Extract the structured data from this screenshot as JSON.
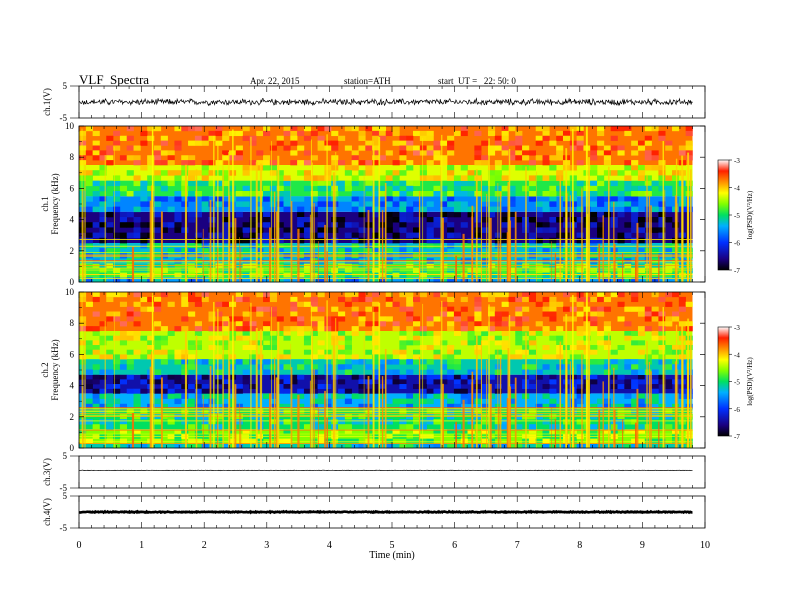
{
  "header": {
    "title": "VLF  Spectra",
    "date": "Apr. 22, 2015",
    "station": "station=ATH",
    "start": "start  UT =   22: 50: 0"
  },
  "chart_data": [
    {
      "type": "line",
      "panel": "ch1-waveform",
      "ylabel": "ch.1(V)",
      "ylim": [
        -5,
        5
      ],
      "yticks": [
        "5",
        "-5"
      ],
      "description_values": {
        "baseline_v": 0,
        "amplitude_v_max": 1.2
      },
      "color": "#000000"
    },
    {
      "type": "heatmap",
      "panel": "ch1-spectrogram",
      "ylabel_line1": "ch.1",
      "ylabel_line2": "Frequency  (kHz)",
      "ylim": [
        0,
        10
      ],
      "yticks": [
        "0",
        "2",
        "4",
        "6",
        "8",
        "10"
      ],
      "xlim": [
        0,
        9.8
      ],
      "colorbar": {
        "label": "log(PSD)(V²/Hz)",
        "range": [
          -7,
          -3
        ],
        "ticks": [
          "-3",
          "-4",
          "-5",
          "-6",
          "-7"
        ]
      },
      "bands_khz_to_logpsd": [
        {
          "f": [
            0,
            0.3
          ],
          "v": -5.5
        },
        {
          "f": [
            0.3,
            1.2
          ],
          "v": -4.8
        },
        {
          "f": [
            1.2,
            2.5
          ],
          "v": -5.3
        },
        {
          "f": [
            2.5,
            4.5
          ],
          "v": -6.6
        },
        {
          "f": [
            4.5,
            5.5
          ],
          "v": -5.6
        },
        {
          "f": [
            5.5,
            6.5
          ],
          "v": -4.9
        },
        {
          "f": [
            6.5,
            7.5
          ],
          "v": -4.3
        },
        {
          "f": [
            7.5,
            10
          ],
          "v": -3.7
        }
      ]
    },
    {
      "type": "heatmap",
      "panel": "ch2-spectrogram",
      "ylabel_line1": "ch.2",
      "ylabel_line2": "Frequency  (kHz)",
      "ylim": [
        0,
        10
      ],
      "yticks": [
        "0",
        "2",
        "4",
        "6",
        "8",
        "10"
      ],
      "xlim": [
        0,
        9.8
      ],
      "colorbar": {
        "label": "log(PSD)(V²/Hz)",
        "range": [
          -7,
          -3
        ],
        "ticks": [
          "-3",
          "-4",
          "-5",
          "-6",
          "-7"
        ]
      },
      "bands_khz_to_logpsd": [
        {
          "f": [
            0,
            0.3
          ],
          "v": -5.2
        },
        {
          "f": [
            0.3,
            1.2
          ],
          "v": -4.6
        },
        {
          "f": [
            1.2,
            2.5
          ],
          "v": -5.0
        },
        {
          "f": [
            2.5,
            3.5
          ],
          "v": -5.4
        },
        {
          "f": [
            3.5,
            4.7
          ],
          "v": -6.4
        },
        {
          "f": [
            4.7,
            5.7
          ],
          "v": -5.2
        },
        {
          "f": [
            5.7,
            7.5
          ],
          "v": -4.4
        },
        {
          "f": [
            7.5,
            10
          ],
          "v": -3.7
        }
      ]
    },
    {
      "type": "line",
      "panel": "ch3-waveform",
      "ylabel": "ch.3(V)",
      "ylim": [
        -5,
        5
      ],
      "yticks": [
        "5",
        "-5"
      ],
      "description_values": {
        "baseline_v": 0.5,
        "amplitude_v_max": 0.1
      },
      "color": "#000000"
    },
    {
      "type": "line",
      "panel": "ch4-waveform",
      "ylabel": "ch.4(V)",
      "ylim": [
        -5,
        5
      ],
      "yticks": [
        "5",
        "-5"
      ],
      "description_values": {
        "baseline_v": 0,
        "amplitude_v_max": 0.2
      },
      "color": "#000000"
    }
  ],
  "xaxis": {
    "label": "Time  (min)",
    "xlim": [
      0,
      10
    ],
    "ticks": [
      "0",
      "1",
      "2",
      "3",
      "4",
      "5",
      "6",
      "7",
      "8",
      "9",
      "10"
    ]
  }
}
